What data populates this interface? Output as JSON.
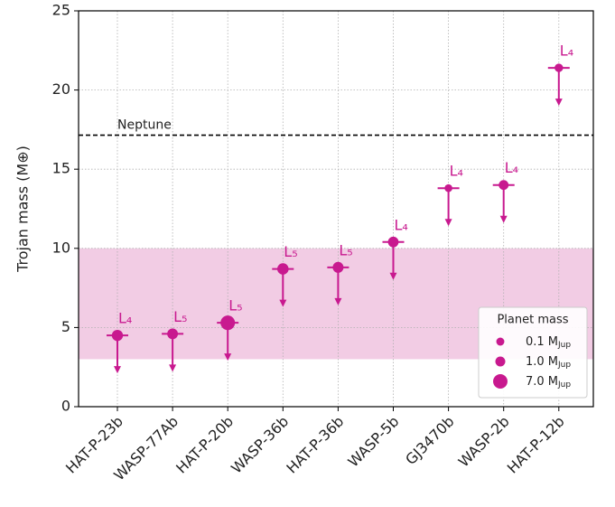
{
  "chart_data": {
    "type": "scatter",
    "ylabel": "Trojan mass (M⊕)",
    "categories": [
      "HAT-P-23b",
      "WASP-77Ab",
      "HAT-P-20b",
      "WASP-36b",
      "HAT-P-36b",
      "WASP-5b",
      "GJ3470b",
      "WASP-2b",
      "HAT-P-12b"
    ],
    "series": [
      {
        "name": "Trojan mass upper limit",
        "color": "#c8198f",
        "values": [
          4.5,
          4.6,
          5.3,
          8.7,
          8.8,
          10.4,
          13.8,
          14.0,
          21.4
        ],
        "sizes": [
          2.1,
          1.7,
          7.2,
          2.3,
          1.8,
          1.6,
          0.04,
          0.9,
          0.2
        ],
        "annotations": [
          "L₄",
          "L₅",
          "L₅",
          "L₅",
          "L₅",
          "L₄",
          "L₄",
          "L₄",
          "L₄"
        ]
      }
    ],
    "ylim": [
      0,
      25
    ],
    "yticks": [
      0,
      5,
      10,
      15,
      20,
      25
    ],
    "grid": true,
    "band": {
      "range": [
        3,
        10
      ],
      "color": "#f2cce4"
    },
    "hline": {
      "value": 17.15,
      "label": "Neptune"
    },
    "legend": {
      "title": "Planet mass",
      "position": "lower right",
      "items": [
        {
          "label": "0.1 M",
          "sub": "Jup",
          "size": 0.1
        },
        {
          "label": "1.0 M",
          "sub": "Jup",
          "size": 1.0
        },
        {
          "label": "7.0 M",
          "sub": "Jup",
          "size": 7.0
        }
      ]
    }
  }
}
